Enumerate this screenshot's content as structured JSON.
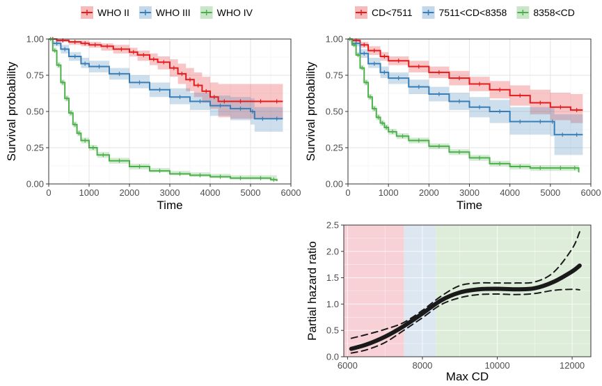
{
  "chart_data": [
    {
      "type": "line",
      "xlabel": "Time",
      "ylabel": "Survival probability",
      "xlim": [
        0,
        6000
      ],
      "ylim": [
        0,
        1
      ],
      "x_ticks": [
        "0",
        "1000",
        "2000",
        "3000",
        "4000",
        "5000",
        "6000"
      ],
      "y_ticks": [
        "0.00",
        "0.25",
        "0.50",
        "0.75",
        "1.00"
      ],
      "grid": true,
      "legend_position": "top",
      "series": [
        {
          "name": "WHO II",
          "color": "#E41A1C",
          "x": [
            0,
            200,
            500,
            800,
            1000,
            1300,
            1600,
            2000,
            2200,
            2500,
            2700,
            3000,
            3200,
            3400,
            3600,
            3800,
            4000,
            4200,
            4500,
            5000,
            5500,
            5800
          ],
          "y": [
            1.0,
            0.99,
            0.98,
            0.97,
            0.96,
            0.95,
            0.93,
            0.91,
            0.89,
            0.86,
            0.84,
            0.8,
            0.76,
            0.72,
            0.68,
            0.64,
            0.6,
            0.57,
            0.57,
            0.57,
            0.57,
            0.57
          ],
          "lower": [
            1.0,
            0.98,
            0.96,
            0.95,
            0.94,
            0.92,
            0.9,
            0.88,
            0.85,
            0.82,
            0.79,
            0.74,
            0.69,
            0.64,
            0.6,
            0.56,
            0.52,
            0.46,
            0.45,
            0.45,
            0.45,
            0.45
          ],
          "upper": [
            1.0,
            1.0,
            0.99,
            0.99,
            0.98,
            0.97,
            0.96,
            0.94,
            0.92,
            0.9,
            0.88,
            0.86,
            0.83,
            0.8,
            0.77,
            0.74,
            0.7,
            0.69,
            0.69,
            0.69,
            0.69,
            0.69
          ]
        },
        {
          "name": "WHO III",
          "color": "#377EB8",
          "x": [
            0,
            100,
            300,
            500,
            800,
            1000,
            1500,
            2000,
            2500,
            3000,
            3500,
            4000,
            4500,
            5000,
            5100,
            5500,
            5800
          ],
          "y": [
            1.0,
            0.97,
            0.93,
            0.88,
            0.83,
            0.81,
            0.76,
            0.7,
            0.65,
            0.6,
            0.57,
            0.54,
            0.52,
            0.5,
            0.45,
            0.45,
            0.45
          ],
          "lower": [
            1.0,
            0.95,
            0.9,
            0.85,
            0.8,
            0.77,
            0.72,
            0.66,
            0.6,
            0.55,
            0.51,
            0.47,
            0.44,
            0.41,
            0.36,
            0.36,
            0.36
          ],
          "upper": [
            1.0,
            0.99,
            0.96,
            0.91,
            0.87,
            0.85,
            0.8,
            0.75,
            0.7,
            0.66,
            0.63,
            0.61,
            0.6,
            0.59,
            0.53,
            0.53,
            0.53
          ]
        },
        {
          "name": "WHO IV",
          "color": "#4DAF4A",
          "x": [
            0,
            100,
            200,
            300,
            400,
            500,
            600,
            700,
            800,
            1000,
            1200,
            1500,
            2000,
            2500,
            3000,
            3500,
            4000,
            4500,
            5000,
            5500,
            5650
          ],
          "y": [
            1.0,
            0.92,
            0.82,
            0.7,
            0.59,
            0.49,
            0.41,
            0.35,
            0.3,
            0.25,
            0.2,
            0.16,
            0.12,
            0.09,
            0.07,
            0.06,
            0.05,
            0.04,
            0.04,
            0.03,
            0.02
          ],
          "lower": [
            1.0,
            0.91,
            0.8,
            0.68,
            0.57,
            0.47,
            0.39,
            0.33,
            0.28,
            0.23,
            0.18,
            0.14,
            0.1,
            0.08,
            0.06,
            0.05,
            0.04,
            0.03,
            0.03,
            0.02,
            0.01
          ],
          "upper": [
            1.0,
            0.94,
            0.84,
            0.72,
            0.61,
            0.51,
            0.43,
            0.37,
            0.32,
            0.27,
            0.22,
            0.18,
            0.14,
            0.11,
            0.09,
            0.08,
            0.07,
            0.06,
            0.06,
            0.06,
            0.06
          ]
        }
      ]
    },
    {
      "type": "line",
      "xlabel": "Time",
      "ylabel": "Survival probability",
      "xlim": [
        0,
        6000
      ],
      "ylim": [
        0,
        1
      ],
      "x_ticks": [
        "0",
        "1000",
        "2000",
        "3000",
        "4000",
        "5000",
        "6000"
      ],
      "y_ticks": [
        "0.00",
        "0.25",
        "0.50",
        "0.75",
        "1.00"
      ],
      "grid": true,
      "legend_position": "top",
      "series": [
        {
          "name": "CD<7511",
          "color": "#E41A1C",
          "x": [
            0,
            100,
            300,
            500,
            800,
            1000,
            1500,
            2000,
            2500,
            3000,
            3500,
            4000,
            4500,
            5000,
            5500,
            5800
          ],
          "y": [
            1.0,
            0.99,
            0.96,
            0.92,
            0.88,
            0.85,
            0.81,
            0.77,
            0.73,
            0.69,
            0.65,
            0.61,
            0.56,
            0.53,
            0.51,
            0.51
          ],
          "lower": [
            1.0,
            0.98,
            0.94,
            0.89,
            0.85,
            0.82,
            0.77,
            0.73,
            0.68,
            0.64,
            0.59,
            0.54,
            0.48,
            0.44,
            0.42,
            0.42
          ],
          "upper": [
            1.0,
            1.0,
            0.98,
            0.95,
            0.91,
            0.88,
            0.85,
            0.81,
            0.78,
            0.74,
            0.71,
            0.68,
            0.65,
            0.63,
            0.62,
            0.62
          ]
        },
        {
          "name": "7511<CD<8358",
          "color": "#377EB8",
          "x": [
            0,
            100,
            300,
            500,
            800,
            1000,
            1500,
            2000,
            2500,
            3000,
            3500,
            4000,
            4500,
            5000,
            5100,
            5500,
            5800
          ],
          "y": [
            1.0,
            0.97,
            0.9,
            0.83,
            0.77,
            0.73,
            0.67,
            0.62,
            0.57,
            0.53,
            0.5,
            0.43,
            0.43,
            0.43,
            0.34,
            0.34,
            0.34
          ],
          "lower": [
            1.0,
            0.95,
            0.87,
            0.8,
            0.73,
            0.69,
            0.62,
            0.57,
            0.51,
            0.46,
            0.42,
            0.34,
            0.34,
            0.33,
            0.2,
            0.2,
            0.2
          ],
          "upper": [
            1.0,
            0.99,
            0.93,
            0.87,
            0.81,
            0.77,
            0.72,
            0.67,
            0.63,
            0.6,
            0.58,
            0.53,
            0.53,
            0.53,
            0.48,
            0.48,
            0.48
          ]
        },
        {
          "name": "8358<CD",
          "color": "#4DAF4A",
          "x": [
            0,
            100,
            200,
            300,
            400,
            500,
            600,
            700,
            800,
            900,
            1000,
            1200,
            1500,
            2000,
            2500,
            3000,
            3500,
            4000,
            4500,
            5000,
            5500,
            5700
          ],
          "y": [
            1.0,
            0.96,
            0.89,
            0.8,
            0.7,
            0.6,
            0.52,
            0.46,
            0.42,
            0.39,
            0.36,
            0.33,
            0.3,
            0.26,
            0.22,
            0.18,
            0.14,
            0.12,
            0.11,
            0.11,
            0.11,
            0.08
          ],
          "lower": [
            1.0,
            0.95,
            0.88,
            0.79,
            0.68,
            0.58,
            0.5,
            0.44,
            0.4,
            0.37,
            0.34,
            0.31,
            0.28,
            0.24,
            0.2,
            0.16,
            0.12,
            0.1,
            0.09,
            0.09,
            0.09,
            0.06
          ],
          "upper": [
            1.0,
            0.97,
            0.91,
            0.82,
            0.72,
            0.62,
            0.54,
            0.48,
            0.44,
            0.41,
            0.38,
            0.35,
            0.32,
            0.28,
            0.24,
            0.2,
            0.16,
            0.14,
            0.13,
            0.13,
            0.13,
            0.1
          ]
        }
      ]
    },
    {
      "type": "line",
      "xlabel": "Max CD",
      "ylabel": "Partial hazard ratio",
      "xlim": [
        5900,
        12500
      ],
      "ylim": [
        0,
        2.5
      ],
      "x_ticks": [
        "6000",
        "8000",
        "10000",
        "12000"
      ],
      "y_ticks": [
        "0.0",
        "0.5",
        "1.0",
        "1.5",
        "2.0",
        "2.5"
      ],
      "grid": true,
      "background_regions": [
        {
          "from": 5900,
          "to": 7511,
          "color": "#F8D1D6"
        },
        {
          "from": 7511,
          "to": 8358,
          "color": "#DCE7F2"
        },
        {
          "from": 8358,
          "to": 12500,
          "color": "#DDEDD9"
        }
      ],
      "series": [
        {
          "role": "estimate",
          "x": [
            6100,
            6500,
            7000,
            7500,
            8000,
            8500,
            9000,
            9500,
            10000,
            10500,
            11000,
            11500,
            12000,
            12200
          ],
          "y": [
            0.15,
            0.23,
            0.38,
            0.58,
            0.82,
            1.07,
            1.22,
            1.28,
            1.29,
            1.28,
            1.3,
            1.42,
            1.62,
            1.73
          ]
        },
        {
          "role": "upper",
          "x": [
            6100,
            6500,
            7000,
            7500,
            8000,
            8500,
            9000,
            9500,
            10000,
            10500,
            11000,
            11500,
            12000,
            12200
          ],
          "y": [
            0.35,
            0.42,
            0.52,
            0.65,
            0.88,
            1.15,
            1.35,
            1.4,
            1.4,
            1.4,
            1.42,
            1.6,
            2.05,
            2.37
          ]
        },
        {
          "role": "lower",
          "x": [
            6100,
            6500,
            7000,
            7500,
            8000,
            8500,
            9000,
            9500,
            10000,
            10500,
            11000,
            11500,
            12000,
            12200
          ],
          "y": [
            0.07,
            0.13,
            0.27,
            0.5,
            0.74,
            0.99,
            1.12,
            1.18,
            1.19,
            1.18,
            1.2,
            1.26,
            1.28,
            1.27
          ]
        }
      ]
    }
  ]
}
